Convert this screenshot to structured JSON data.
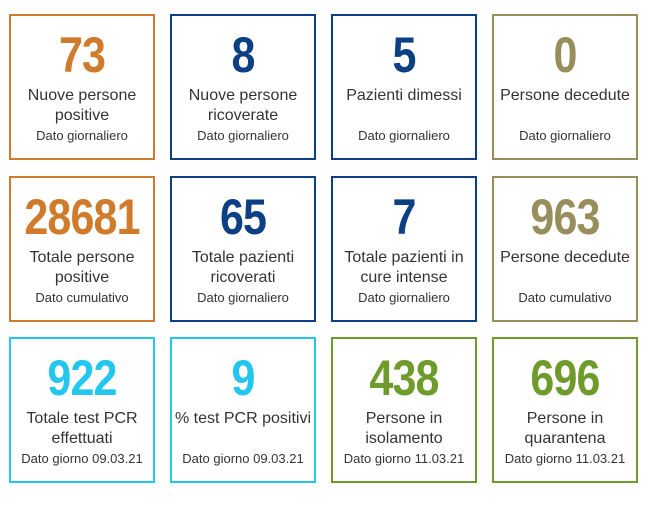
{
  "colors": {
    "orange": "#d07a2c",
    "navy": "#0d3f85",
    "olive": "#978e5c",
    "cyan": "#22c6ee",
    "green": "#6f9b2c"
  },
  "cards": [
    {
      "value": "73",
      "label": "Nuove persone positive",
      "sub": "Dato giornaliero",
      "color": "orange"
    },
    {
      "value": "8",
      "label": "Nuove persone ricoverate",
      "sub": "Dato giornaliero",
      "color": "navy"
    },
    {
      "value": "5",
      "label": "Pazienti dimessi",
      "sub": "Dato giornaliero",
      "color": "navy"
    },
    {
      "value": "0",
      "label": "Persone decedute",
      "sub": "Dato giornaliero",
      "color": "olive"
    },
    {
      "value": "28681",
      "label": "Totale persone positive",
      "sub": "Dato cumulativo",
      "color": "orange"
    },
    {
      "value": "65",
      "label": "Totale pazienti ricoverati",
      "sub": "Dato giornaliero",
      "color": "navy"
    },
    {
      "value": "7",
      "label": "Totale pazienti in cure intense",
      "sub": "Dato giornaliero",
      "color": "navy"
    },
    {
      "value": "963",
      "label": "Persone decedute",
      "sub": "Dato cumulativo",
      "color": "olive"
    },
    {
      "value": "922",
      "label": "Totale test PCR effettuati",
      "sub": "Dato giorno 09.03.21",
      "color": "cyan"
    },
    {
      "value": "9",
      "label": "% test PCR positivi",
      "sub": "Dato giorno 09.03.21",
      "color": "cyan"
    },
    {
      "value": "438",
      "label": "Persone in isolamento",
      "sub": "Dato giorno 11.03.21",
      "color": "green"
    },
    {
      "value": "696",
      "label": "Persone in quarantena",
      "sub": "Dato giorno 11.03.21",
      "color": "green"
    }
  ]
}
